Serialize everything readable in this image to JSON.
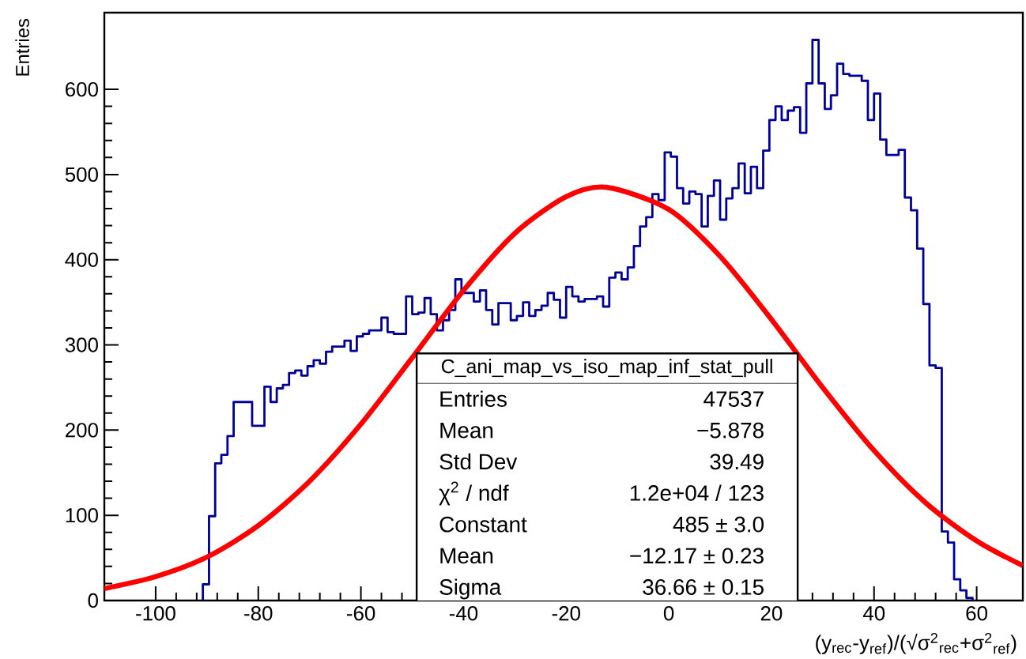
{
  "chart_data": {
    "type": "histogram",
    "xlabel": "(y$_{rec}$-y$_{ref}$)/(√σ$^{2}$$_{rec}$+σ$^{2}$$_{ref}$)",
    "ylabel": "Entries",
    "xlim": [
      -110,
      69
    ],
    "ylim": [
      0,
      690
    ],
    "xticks": [
      -100,
      -80,
      -60,
      -40,
      -20,
      0,
      20,
      40,
      60
    ],
    "yticks": [
      0,
      100,
      200,
      300,
      400,
      500,
      600
    ],
    "series": [
      {
        "color": "#000099",
        "bins": [
          -90.8,
          -89.6,
          -88.4,
          -87.2,
          -86,
          -84.8,
          -83.6,
          -82.4,
          -81.2,
          -80,
          -78.8,
          -77.6,
          -76.4,
          -75.2,
          -74,
          -72.8,
          -71.6,
          -70.4,
          -69.2,
          -68,
          -66.8,
          -65.6,
          -64.4,
          -63.2,
          -62,
          -60.8,
          -59.6,
          -58.4,
          -57.2,
          -56,
          -54.8,
          -53.6,
          -52.4,
          -51.2,
          -50,
          -48.8,
          -47.6,
          -46.4,
          -45.2,
          -44,
          -42.8,
          -41.6,
          -40.4,
          -39.2,
          -38,
          -36.8,
          -35.6,
          -34.4,
          -33.2,
          -32,
          -30.8,
          -29.6,
          -28.4,
          -27.2,
          -26,
          -24.8,
          -23.6,
          -22.4,
          -21.2,
          -20,
          -18.8,
          -17.6,
          -16.4,
          -15.2,
          -14,
          -12.8,
          -11.6,
          -10.4,
          -9.2,
          -8,
          -6.8,
          -5.6,
          -4.4,
          -3.2,
          -2,
          -0.8,
          0.4,
          1.6,
          2.8,
          4,
          5.2,
          6.4,
          7.6,
          8.8,
          10,
          11.2,
          12.4,
          13.6,
          14.8,
          16,
          17.2,
          18.4,
          19.6,
          20.8,
          22,
          23.2,
          24.4,
          25.6,
          26.8,
          28,
          29.2,
          30.4,
          31.6,
          32.8,
          34,
          35.2,
          36.4,
          37.6,
          38.8,
          40,
          41.2,
          42.4,
          43.6,
          44.8,
          46,
          47.2,
          48.4,
          49.6,
          50.8,
          52,
          53.2,
          54.4,
          55.6,
          56.8,
          58,
          59.2
        ],
        "values": [
          19,
          99,
          161,
          171,
          193,
          233,
          233,
          233,
          205,
          205,
          251,
          233,
          249,
          253,
          267,
          270,
          264,
          275,
          282,
          278,
          292,
          298,
          298,
          305,
          293,
          310,
          313,
          317,
          317,
          332,
          315,
          313,
          313,
          357,
          336,
          338,
          355,
          336,
          317,
          329,
          341,
          377,
          361,
          361,
          351,
          364,
          341,
          324,
          349,
          349,
          329,
          334,
          350,
          334,
          341,
          346,
          361,
          353,
          332,
          368,
          357,
          351,
          354,
          354,
          357,
          345,
          379,
          385,
          377,
          391,
          416,
          439,
          450,
          477,
          470,
          526,
          521,
          484,
          466,
          480,
          477,
          439,
          475,
          493,
          447,
          472,
          484,
          513,
          478,
          509,
          484,
          528,
          564,
          580,
          564,
          575,
          579,
          549,
          607,
          658,
          607,
          577,
          593,
          630,
          618,
          616,
          616,
          610,
          564,
          595,
          541,
          523,
          523,
          529,
          473,
          458,
          413,
          348,
          276,
          273,
          81,
          68,
          25,
          12,
          3
        ]
      },
      {
        "type": "line",
        "color": "#ff0000",
        "x": [
          -110,
          -100,
          -90,
          -80,
          -70,
          -60,
          -50,
          -40,
          -30,
          -20,
          -12.17,
          0,
          10,
          20,
          30,
          40,
          50,
          60,
          69
        ],
        "values": [
          14,
          28,
          51,
          88,
          140,
          207,
          285,
          364,
          431,
          474,
          485,
          459,
          404,
          330,
          250,
          176,
          115,
          70,
          41
        ]
      }
    ],
    "annotations": [
      "C_ani_map_vs_iso_map_inf_stat_pull",
      "Entries",
      "47537",
      "Mean",
      "−5.878",
      "Std Dev",
      "39.49",
      "χ$^{2}$ / ndf",
      "1.2e+04 / 123",
      "Constant",
      "485 ± 3.0",
      "Mean",
      "−12.17 ± 0.23",
      "Sigma",
      "36.66 ± 0.15"
    ]
  }
}
